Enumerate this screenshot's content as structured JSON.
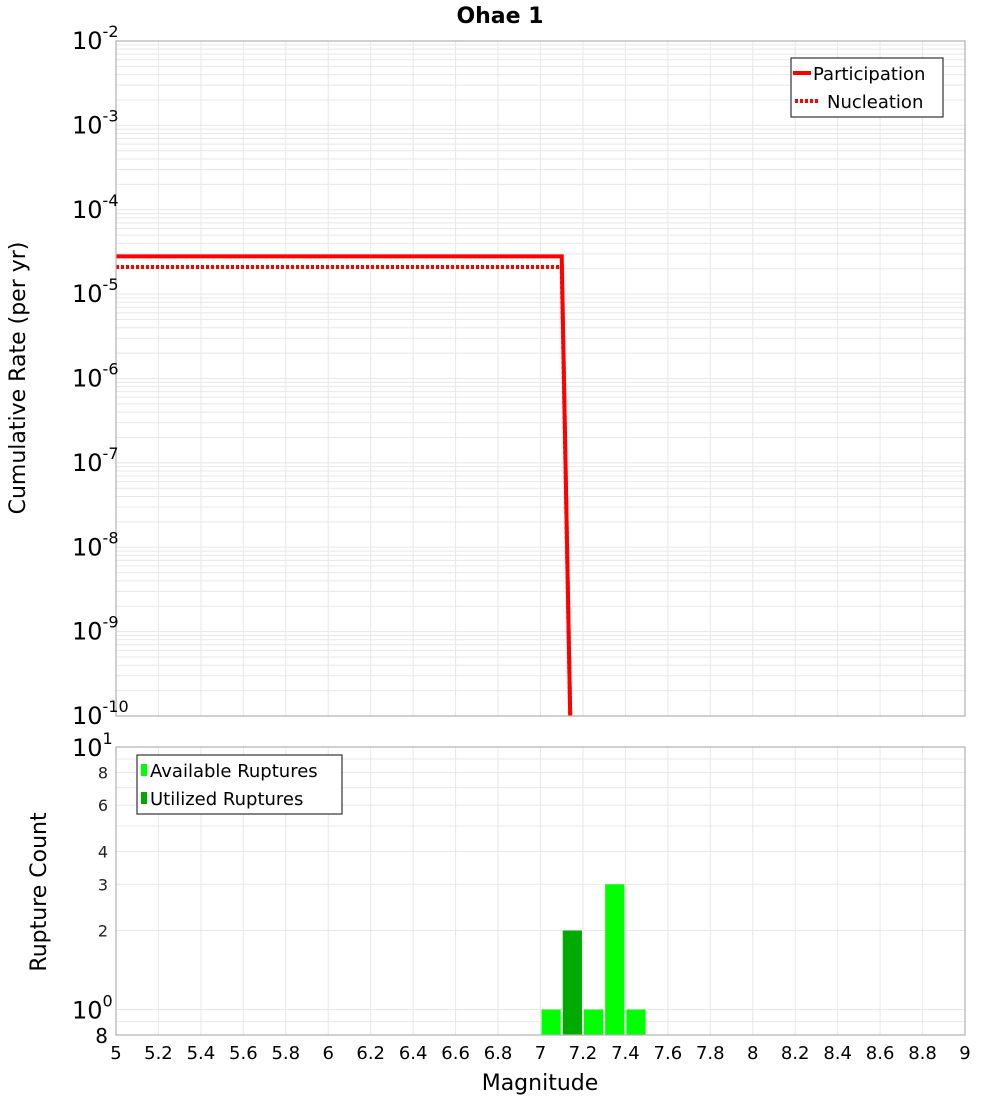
{
  "title": "Ohae 1",
  "colors": {
    "participation": "#ff0000",
    "nucleation": "#ff0000",
    "available": "#00ff00",
    "utilized": "#00aa00",
    "grid": "#e8e8e8",
    "frame": "#b0b0b0"
  },
  "top_plot": {
    "ylabel": "Cumulative Rate (per yr)",
    "yticks": [
      {
        "base": "10",
        "exp": "-2"
      },
      {
        "base": "10",
        "exp": "-3"
      },
      {
        "base": "10",
        "exp": "-4"
      },
      {
        "base": "10",
        "exp": "-5"
      },
      {
        "base": "10",
        "exp": "-6"
      },
      {
        "base": "10",
        "exp": "-7"
      },
      {
        "base": "10",
        "exp": "-8"
      },
      {
        "base": "10",
        "exp": "-9"
      },
      {
        "base": "10",
        "exp": "-10"
      }
    ],
    "legend": [
      {
        "label": "Participation",
        "style": "solid"
      },
      {
        "label": "Nucleation",
        "style": "dotted"
      }
    ]
  },
  "bottom_plot": {
    "ylabel": "Rupture Count",
    "yticks_major": [
      {
        "base": "10",
        "exp": "1"
      },
      {
        "base": "10",
        "exp": "0"
      }
    ],
    "yticks_minor": [
      "8",
      "6",
      "4",
      "3",
      "2"
    ],
    "ytick_bottom": "8",
    "legend": [
      {
        "label": "Available Ruptures"
      },
      {
        "label": "Utilized Ruptures"
      }
    ]
  },
  "xaxis": {
    "label": "Magnitude",
    "ticks": [
      "5",
      "5.2",
      "5.4",
      "5.6",
      "5.8",
      "6",
      "6.2",
      "6.4",
      "6.6",
      "6.8",
      "7",
      "7.2",
      "7.4",
      "7.6",
      "7.8",
      "8",
      "8.2",
      "8.4",
      "8.6",
      "8.8",
      "9"
    ]
  },
  "chart_data": [
    {
      "type": "line",
      "title": "Ohae 1",
      "xlabel": "Magnitude",
      "ylabel": "Cumulative Rate (per yr)",
      "xlim": [
        5,
        9
      ],
      "ylim": [
        1e-10,
        0.01
      ],
      "yscale": "log",
      "grid": true,
      "legend_position": "top-right",
      "series": [
        {
          "name": "Participation",
          "style": "solid",
          "x": [
            5.0,
            7.1,
            7.14
          ],
          "y": [
            2.8e-05,
            2.8e-05,
            1e-10
          ]
        },
        {
          "name": "Nucleation",
          "style": "dotted",
          "x": [
            5.0,
            7.1,
            7.14
          ],
          "y": [
            2.1e-05,
            2.1e-05,
            1e-10
          ]
        }
      ]
    },
    {
      "type": "bar",
      "xlabel": "Magnitude",
      "ylabel": "Rupture Count",
      "xlim": [
        5,
        9
      ],
      "ylim": [
        0.8,
        10
      ],
      "yscale": "log",
      "grid": true,
      "legend_position": "top-left",
      "categories": [
        "7.05",
        "7.15",
        "7.25",
        "7.35",
        "7.45"
      ],
      "series": [
        {
          "name": "Available Ruptures",
          "values": [
            1,
            0,
            1,
            3,
            1
          ]
        },
        {
          "name": "Utilized Ruptures",
          "values": [
            0,
            2,
            0,
            0,
            0
          ]
        }
      ]
    }
  ]
}
